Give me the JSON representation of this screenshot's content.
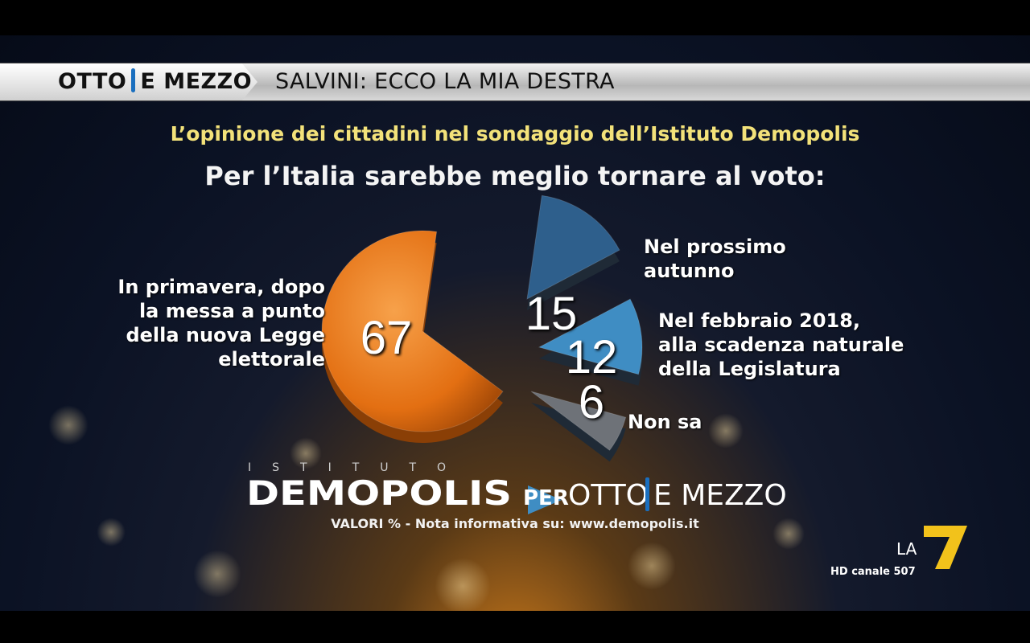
{
  "header": {
    "brand_left": "OTTO",
    "brand_right": "E MEZZO",
    "headline": "SALVINI: ECCO LA MIA DESTRA"
  },
  "subtitle": "L’opinione dei cittadini nel sondaggio dell’Istituto Demopolis",
  "question": "Per l’Italia sarebbe meglio tornare al voto:",
  "chart_data": {
    "type": "pie",
    "title": "Per l’Italia sarebbe meglio tornare al voto:",
    "unit": "%",
    "slices": [
      {
        "label": "In primavera, dopo la messa a punto della nuova Legge elettorale",
        "value": 67,
        "color": "#e8761c"
      },
      {
        "label": "Nel prossimo autunno",
        "value": 15,
        "color": "#2e5f8c"
      },
      {
        "label": "Nel febbraio 2018, alla scadenza naturale della Legislatura",
        "value": 12,
        "color": "#3f8dc3"
      },
      {
        "label": "Non sa",
        "value": 6,
        "color": "#6e7278"
      }
    ]
  },
  "labels": {
    "primavera_lines": [
      "In primavera, dopo",
      "la messa a punto",
      "della nuova Legge",
      "elettorale"
    ],
    "autunno_lines": [
      "Nel prossimo",
      "autunno"
    ],
    "febbraio_lines": [
      "Nel febbraio 2018,",
      "alla scadenza naturale",
      "della Legislatura"
    ],
    "nonsa": "Non sa"
  },
  "footer": {
    "istituto": "ISTITUTO",
    "demopolis": "DEMOPOLIS",
    "per": "PER",
    "otto": "OTTO",
    "emezzo": "E MEZZO",
    "note": "VALORI % - Nota informativa su: www.demopolis.it"
  },
  "channel": {
    "logo": "LA",
    "logo_digit": "7",
    "caption": "HD canale 507",
    "colors": {
      "accent": "#f2c21b"
    }
  }
}
